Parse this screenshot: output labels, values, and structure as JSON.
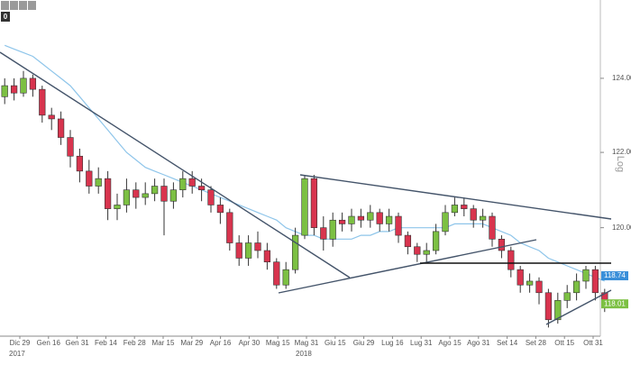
{
  "toolbar_badge": "0",
  "chart_data": {
    "type": "candlestick",
    "scale_label": "Log",
    "log_scale": true,
    "ylim": [
      117.2,
      126.15
    ],
    "yticks": [
      {
        "value": 124,
        "label": "124.00"
      },
      {
        "value": 122,
        "label": "122.00"
      },
      {
        "value": 120,
        "label": "120.00"
      }
    ],
    "xticks": [
      "Dic 29",
      "Gen 16",
      "Gen 31",
      "Feb 14",
      "Feb 28",
      "Mar 15",
      "Mar 29",
      "Apr 16",
      "Apr 30",
      "Mag 15",
      "Mag 31",
      "Giu 15",
      "Giu 29",
      "Lug 16",
      "Lug 31",
      "Ago 15",
      "Ago 31",
      "Set 14",
      "Set 28",
      "Ott 15",
      "Ott 31"
    ],
    "year_labels": [
      "2017",
      "2018"
    ],
    "up_color": "#7cc043",
    "down_color": "#d8344e",
    "open": [
      123.5,
      123.8,
      123.6,
      124.0,
      123.7,
      123.0,
      122.9,
      122.4,
      121.9,
      121.5,
      121.1,
      121.3,
      120.5,
      120.6,
      121.0,
      120.8,
      120.9,
      121.1,
      120.7,
      121.0,
      121.3,
      121.1,
      121.0,
      120.6,
      120.4,
      119.6,
      119.2,
      119.6,
      119.4,
      119.1,
      118.5,
      118.9,
      119.8,
      121.3,
      120.0,
      119.7,
      120.2,
      120.1,
      120.3,
      120.2,
      120.4,
      120.1,
      120.3,
      119.8,
      119.5,
      119.3,
      119.4,
      119.9,
      120.4,
      120.6,
      120.5,
      120.2,
      120.3,
      119.7,
      119.4,
      118.9,
      118.5,
      118.6,
      118.3,
      117.6,
      118.1,
      118.3,
      118.6,
      118.9,
      118.3
    ],
    "high": [
      124.0,
      124.0,
      124.2,
      124.1,
      123.8,
      123.2,
      123.1,
      122.6,
      122.1,
      121.8,
      121.6,
      121.5,
      120.9,
      121.3,
      121.2,
      121.2,
      121.3,
      121.3,
      121.2,
      121.5,
      121.5,
      121.3,
      121.1,
      120.8,
      120.5,
      119.8,
      119.8,
      119.9,
      119.6,
      119.2,
      119.1,
      120.0,
      121.4,
      121.4,
      120.3,
      120.4,
      120.4,
      120.5,
      120.5,
      120.6,
      120.5,
      120.5,
      120.4,
      119.9,
      119.6,
      119.6,
      120.1,
      120.6,
      120.8,
      120.8,
      120.6,
      120.5,
      120.4,
      119.8,
      119.5,
      119.0,
      118.8,
      118.7,
      118.4,
      118.3,
      118.5,
      118.8,
      119.0,
      119.0,
      118.4
    ],
    "low": [
      123.3,
      123.4,
      123.5,
      123.5,
      122.8,
      122.6,
      122.2,
      121.6,
      121.2,
      120.9,
      120.9,
      120.2,
      120.2,
      120.4,
      120.5,
      120.6,
      120.7,
      119.8,
      120.5,
      120.8,
      120.9,
      120.7,
      120.4,
      120.1,
      119.4,
      119.0,
      119.0,
      119.2,
      118.9,
      118.4,
      118.4,
      118.8,
      119.7,
      119.8,
      119.4,
      119.5,
      119.9,
      119.9,
      120.0,
      120.0,
      119.9,
      119.9,
      119.6,
      119.3,
      119.1,
      119.1,
      119.3,
      119.8,
      120.3,
      120.3,
      120.0,
      120.0,
      119.5,
      119.2,
      118.7,
      118.3,
      118.3,
      118.0,
      117.4,
      117.5,
      117.9,
      118.1,
      118.4,
      118.1,
      117.8
    ],
    "close": [
      123.8,
      123.6,
      124.0,
      123.7,
      123.0,
      122.9,
      122.4,
      121.9,
      121.5,
      121.1,
      121.3,
      120.5,
      120.6,
      121.0,
      120.8,
      120.9,
      121.1,
      120.7,
      121.0,
      121.3,
      121.1,
      121.0,
      120.6,
      120.4,
      119.6,
      119.2,
      119.6,
      119.4,
      119.1,
      118.5,
      118.9,
      119.8,
      121.3,
      120.0,
      119.7,
      120.2,
      120.1,
      120.3,
      120.2,
      120.4,
      120.1,
      120.3,
      119.8,
      119.5,
      119.3,
      119.4,
      119.9,
      120.4,
      120.6,
      120.5,
      120.2,
      120.3,
      119.7,
      119.4,
      118.9,
      118.5,
      118.6,
      118.3,
      117.6,
      118.1,
      118.3,
      118.6,
      118.9,
      118.3,
      118.0
    ],
    "moving_average": {
      "color": "#8ec5ea",
      "values": [
        124.9,
        124.8,
        124.7,
        124.6,
        124.4,
        124.2,
        124.0,
        123.8,
        123.5,
        123.2,
        122.9,
        122.6,
        122.3,
        122.0,
        121.8,
        121.6,
        121.5,
        121.4,
        121.3,
        121.2,
        121.1,
        121.0,
        120.9,
        120.8,
        120.7,
        120.6,
        120.5,
        120.4,
        120.3,
        120.2,
        120.0,
        119.9,
        119.8,
        119.8,
        119.7,
        119.7,
        119.7,
        119.7,
        119.8,
        119.8,
        119.9,
        119.9,
        120.0,
        120.0,
        120.0,
        120.0,
        120.0,
        120.0,
        120.1,
        120.1,
        120.1,
        120.1,
        120.0,
        119.9,
        119.8,
        119.6,
        119.5,
        119.4,
        119.2,
        119.1,
        119.0,
        118.9,
        118.8,
        118.7,
        118.6
      ]
    },
    "price_tags": [
      {
        "value": 118.74,
        "label": "118.74",
        "color": "#3a8fd9"
      },
      {
        "value": 118.01,
        "label": "118.01",
        "color": "#7cc043"
      }
    ]
  }
}
